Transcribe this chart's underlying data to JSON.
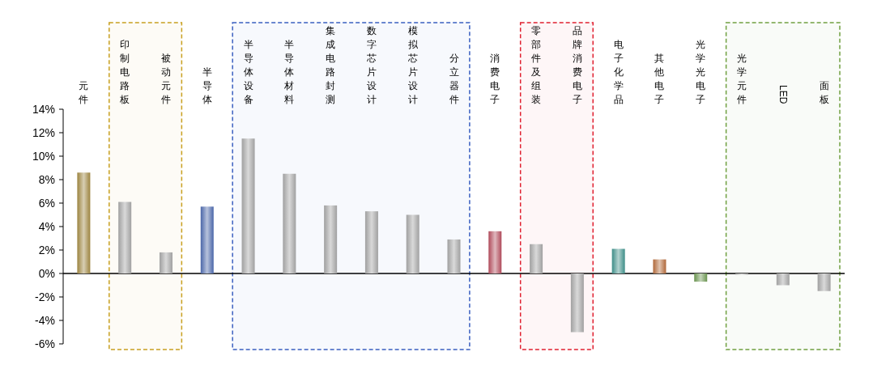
{
  "chart_data": {
    "type": "bar",
    "categories": [
      "元件",
      "印制电路板",
      "被动元件",
      "半导体",
      "半导体设备",
      "半导体材料",
      "集成电路封测",
      "数字芯片设计",
      "模拟芯片设计",
      "分立器件",
      "消费电子",
      "零部件及组装",
      "品牌消费电子",
      "电子化学品",
      "其他电子",
      "光学光电子",
      "光学元件",
      "LED",
      "面板"
    ],
    "values": [
      8.6,
      6.1,
      1.8,
      5.7,
      11.5,
      8.5,
      5.8,
      5.3,
      5.0,
      2.9,
      3.6,
      2.5,
      -5.0,
      2.1,
      1.2,
      -0.7,
      -0.1,
      -1.0,
      -1.5
    ],
    "colors": [
      "#9c8440",
      "#a0a0a0",
      "#a0a0a0",
      "#4a66a8",
      "#a0a0a0",
      "#a0a0a0",
      "#a0a0a0",
      "#a0a0a0",
      "#a0a0a0",
      "#a0a0a0",
      "#b04a5a",
      "#a0a0a0",
      "#a0a0a0",
      "#3e8e88",
      "#b0683a",
      "#6a9450",
      "#a0a0a0",
      "#a0a0a0",
      "#a0a0a0"
    ],
    "ylim": [
      -6,
      14
    ],
    "yticks": [
      {
        "value": -6,
        "label": "-6%"
      },
      {
        "value": -4,
        "label": "-4%"
      },
      {
        "value": -2,
        "label": "-2%"
      },
      {
        "value": 0,
        "label": "0%"
      },
      {
        "value": 2,
        "label": "2%"
      },
      {
        "value": 4,
        "label": "4%"
      },
      {
        "value": 6,
        "label": "6%"
      },
      {
        "value": 8,
        "label": "8%"
      },
      {
        "value": 10,
        "label": "10%"
      },
      {
        "value": 12,
        "label": "12%"
      },
      {
        "value": 14,
        "label": "14%"
      }
    ],
    "bands": [
      {
        "axis": "x",
        "from": "印制电路板",
        "to": "被动元件",
        "color": "#c8a020"
      },
      {
        "axis": "x",
        "from": "半导体设备",
        "to": "分立器件",
        "color": "#3a5fc0"
      },
      {
        "axis": "x",
        "from": "零部件及组装",
        "to": "品牌消费电子",
        "color": "#e02030"
      },
      {
        "axis": "x",
        "from": "光学元件",
        "to": "面板",
        "color": "#70a040"
      }
    ]
  }
}
